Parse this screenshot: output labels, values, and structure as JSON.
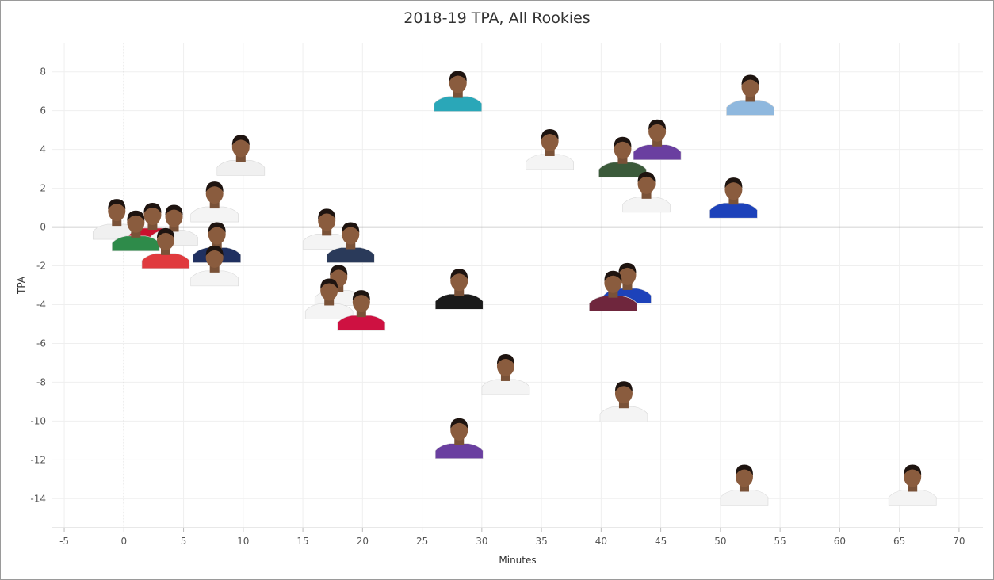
{
  "chart_data": {
    "type": "scatter",
    "title": "2018-19 TPA, All Rookies",
    "xlabel": "Minutes",
    "ylabel": "TPA",
    "xlim": [
      -6,
      72
    ],
    "ylim": [
      -15.5,
      9.5
    ],
    "xticks": [
      -5,
      0,
      5,
      10,
      15,
      20,
      25,
      30,
      35,
      40,
      45,
      50,
      55,
      60,
      65,
      70
    ],
    "yticks": [
      8,
      6,
      4,
      2,
      0,
      -2,
      -4,
      -6,
      -8,
      -10,
      -12,
      -14
    ],
    "grid": true,
    "reference_lines": {
      "y": 0,
      "x": 0
    },
    "marker": "player headshot",
    "points": [
      {
        "x": 28.0,
        "y": 6.7,
        "jersey": "#2aa7b8"
      },
      {
        "x": 52.5,
        "y": 6.5,
        "jersey": "#8fb8de"
      },
      {
        "x": 44.7,
        "y": 4.2,
        "jersey": "#6a3fa0"
      },
      {
        "x": 35.7,
        "y": 3.7,
        "jersey": "#f4f4f4"
      },
      {
        "x": 41.8,
        "y": 3.3,
        "jersey": "#3b5a3a"
      },
      {
        "x": 9.8,
        "y": 3.4,
        "jersey": "#f0f0f0"
      },
      {
        "x": 43.8,
        "y": 1.5,
        "jersey": "#f4f4f4"
      },
      {
        "x": 51.1,
        "y": 1.2,
        "jersey": "#1d42ba"
      },
      {
        "x": 7.6,
        "y": 1.0,
        "jersey": "#f4f4f4"
      },
      {
        "x": -0.6,
        "y": 0.1,
        "jersey": "#f0f0f0"
      },
      {
        "x": 2.4,
        "y": -0.1,
        "jersey": "#c8102e"
      },
      {
        "x": 4.2,
        "y": -0.2,
        "jersey": "#f0f0f0"
      },
      {
        "x": 1.0,
        "y": -0.5,
        "jersey": "#2e8b4a"
      },
      {
        "x": 17.0,
        "y": -0.4,
        "jersey": "#f4f4f4"
      },
      {
        "x": 19.0,
        "y": -1.1,
        "jersey": "#2a3a5a"
      },
      {
        "x": 7.8,
        "y": -1.1,
        "jersey": "#203060"
      },
      {
        "x": 3.5,
        "y": -1.4,
        "jersey": "#e03a3e"
      },
      {
        "x": 7.6,
        "y": -2.3,
        "jersey": "#f4f4f4"
      },
      {
        "x": 18.0,
        "y": -3.3,
        "jersey": "#f4f4f4"
      },
      {
        "x": 17.2,
        "y": -4.0,
        "jersey": "#f4f4f4"
      },
      {
        "x": 19.9,
        "y": -4.6,
        "jersey": "#ce1141"
      },
      {
        "x": 28.1,
        "y": -3.5,
        "jersey": "#1a1a1a"
      },
      {
        "x": 42.2,
        "y": -3.2,
        "jersey": "#1d42ba"
      },
      {
        "x": 41.0,
        "y": -3.6,
        "jersey": "#6f263d"
      },
      {
        "x": 32.0,
        "y": -7.9,
        "jersey": "#f4f4f4"
      },
      {
        "x": 41.9,
        "y": -9.3,
        "jersey": "#f4f4f4"
      },
      {
        "x": 28.1,
        "y": -11.2,
        "jersey": "#6a3fa0"
      },
      {
        "x": 52.0,
        "y": -13.6,
        "jersey": "#f4f4f4"
      },
      {
        "x": 66.1,
        "y": -13.6,
        "jersey": "#f4f4f4"
      }
    ]
  }
}
